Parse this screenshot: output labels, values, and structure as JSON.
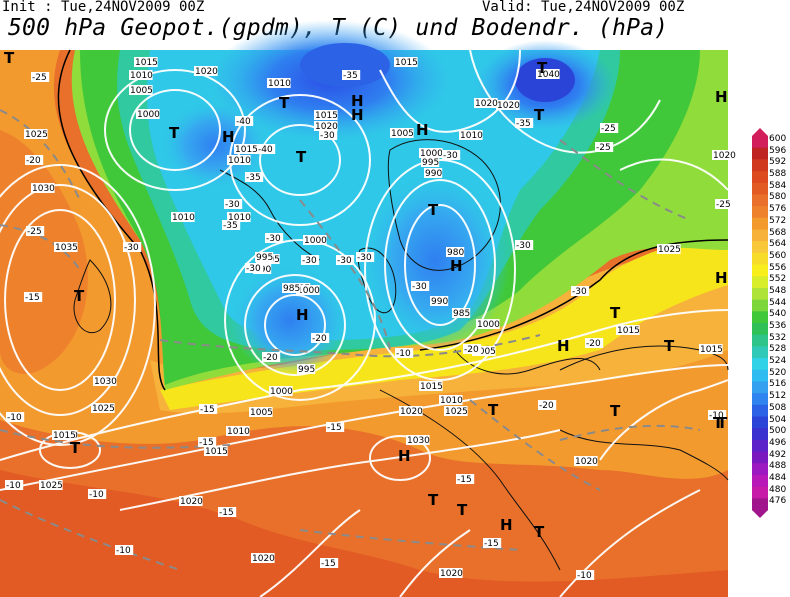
{
  "header": {
    "init": "Init : Tue,24NOV2009 00Z",
    "valid": "Valid: Tue,24NOV2009 00Z",
    "title": "500 hPa Geopot.(gpdm), T (C) und Bodendr. (hPa)"
  },
  "colors": {
    "orange_dark": "#e8702a",
    "orange": "#f39a2f",
    "orange_light": "#f6b23a",
    "yellow": "#f7e51c",
    "green_light": "#8fdc3a",
    "green": "#40c83a",
    "teal": "#30c9a0",
    "cyan": "#2fc8e8",
    "blue_light": "#36a9f0",
    "blue": "#2f7ff0",
    "blue_dark": "#2b4fe6"
  },
  "colorbar": {
    "labels": [
      "600",
      "596",
      "592",
      "588",
      "584",
      "580",
      "576",
      "572",
      "568",
      "564",
      "560",
      "556",
      "552",
      "548",
      "544",
      "540",
      "536",
      "532",
      "528",
      "524",
      "520",
      "516",
      "512",
      "508",
      "504",
      "500",
      "496",
      "492",
      "488",
      "484",
      "480",
      "476"
    ],
    "colors": [
      "#d21f5c",
      "#c02422",
      "#d1391f",
      "#dd4a1f",
      "#e35b24",
      "#e8702a",
      "#ee822c",
      "#f39a2f",
      "#f6b23a",
      "#f7c83a",
      "#f7dc2a",
      "#f7ee1c",
      "#d9ee2a",
      "#aee43a",
      "#7cd63a",
      "#40c83a",
      "#2fc058",
      "#2fc58a",
      "#30c9b8",
      "#2fd2e6",
      "#2fbcf0",
      "#36a0f0",
      "#2f84f0",
      "#2b62e6",
      "#2b44d8",
      "#3a30d0",
      "#5a22c8",
      "#7a18c0",
      "#9c18c0",
      "#b818b8",
      "#c81aa8",
      "#a0148c"
    ]
  },
  "pressure_labels": [
    "1015",
    "1020",
    "1010",
    "1005",
    "1000",
    "1025",
    "1030",
    "1035",
    "1010",
    "1020",
    "1015",
    "1010",
    "1000",
    "1005",
    "1010",
    "1015",
    "1020",
    "1015",
    "1010",
    "1040",
    "1020",
    "1005",
    "1000",
    "995",
    "990",
    "985",
    "990",
    "985",
    "980",
    "1010",
    "1000",
    "995",
    "990",
    "985",
    "995",
    "1000",
    "1005",
    "1010",
    "1015",
    "1020",
    "1025",
    "1030",
    "1025",
    "1020",
    "1015",
    "1010",
    "1005",
    "1000",
    "1020",
    "1025",
    "1030",
    "1020",
    "1015",
    "1020",
    "1025",
    "1015",
    "1020",
    "1020",
    "1015"
  ],
  "temp_labels": [
    "-25",
    "-20",
    "-25",
    "-30",
    "-15",
    "-40",
    "-35",
    "-30",
    "-35",
    "-30",
    "-40",
    "-35",
    "-30",
    "-30",
    "-30",
    "-30",
    "-30",
    "-30",
    "-30",
    "-35",
    "-30",
    "-30",
    "-25",
    "-25",
    "-25",
    "-20",
    "-20",
    "-15",
    "-15",
    "-15",
    "-10",
    "-20",
    "-20",
    "-10",
    "-15",
    "-10",
    "-15",
    "-15",
    "-10",
    "-10",
    "-20",
    "-15",
    "-10",
    "-10"
  ],
  "center_marks": [
    "T",
    "T",
    "H",
    "T",
    "H",
    "T",
    "H",
    "T",
    "T",
    "H",
    "H",
    "T",
    "H",
    "H",
    "T",
    "T",
    "H",
    "H",
    "T",
    "T",
    "T",
    "T",
    "H",
    "T",
    "T",
    "T",
    "H",
    "T",
    "T"
  ]
}
